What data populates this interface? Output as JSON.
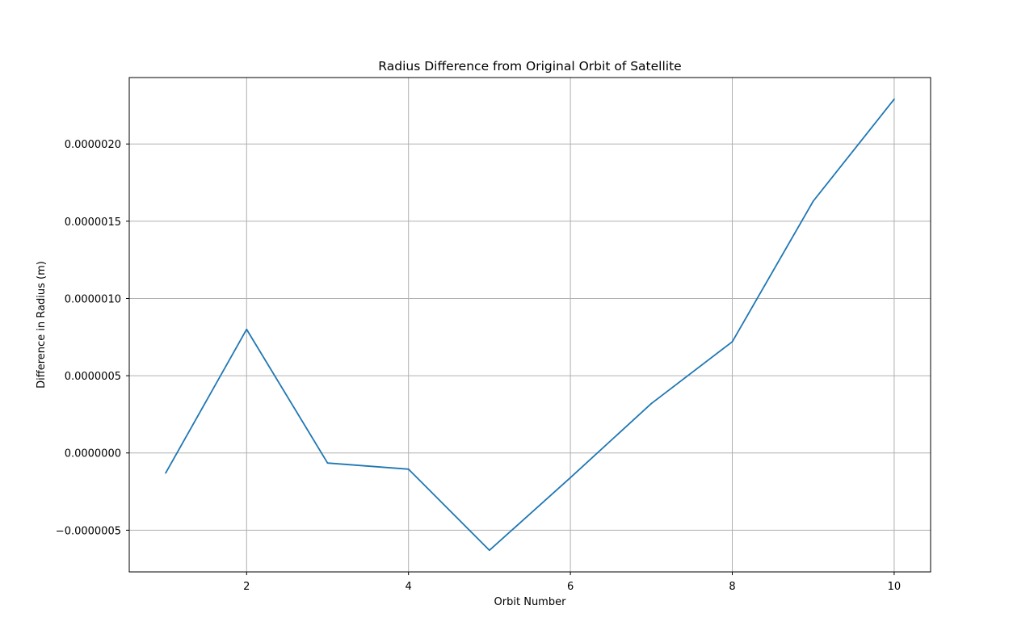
{
  "chart_data": {
    "type": "line",
    "title": "Radius Difference from Original Orbit of Satellite",
    "xlabel": "Orbit Number",
    "ylabel": "Difference in Radius (m)",
    "xlim": [
      0.55,
      10.45
    ],
    "ylim": [
      -7.7e-07,
      2.43e-06
    ],
    "grid": true,
    "x_ticks": [
      2,
      4,
      6,
      8,
      10
    ],
    "x_tick_labels": [
      "2",
      "4",
      "6",
      "8",
      "10"
    ],
    "y_ticks": [
      -5e-07,
      0.0,
      5e-07,
      1e-06,
      1.5e-06,
      2e-06
    ],
    "y_tick_labels": [
      "−0.0000005",
      "0.0000000",
      "0.0000005",
      "0.0000010",
      "0.0000015",
      "0.0000020"
    ],
    "colors": {
      "line": "#1f77b4",
      "grid": "#b0b0b0",
      "frame": "#000000"
    },
    "series": [
      {
        "x": [
          1,
          2,
          3,
          4,
          5,
          6,
          7,
          8,
          9,
          10
        ],
        "values": [
          -1.3e-07,
          8e-07,
          -6.5e-08,
          -1.05e-07,
          -6.3e-07,
          -1.6e-07,
          3.2e-07,
          7.2e-07,
          1.63e-06,
          2.29e-06
        ]
      }
    ]
  }
}
